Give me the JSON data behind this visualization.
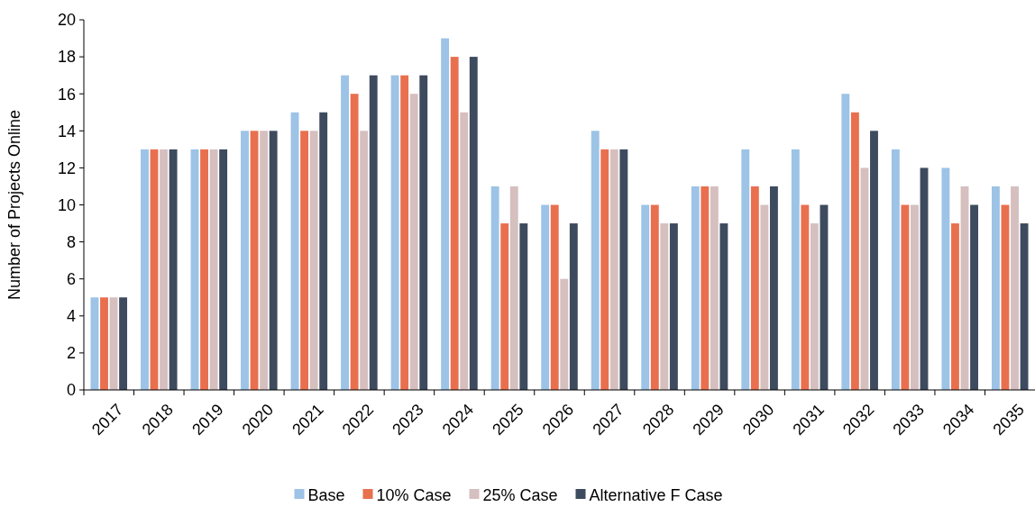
{
  "chart_data": {
    "type": "bar",
    "ylabel": "Number of Projects Online",
    "categories": [
      "2017",
      "2018",
      "2019",
      "2020",
      "2021",
      "2022",
      "2023",
      "2024",
      "2025",
      "2026",
      "2027",
      "2028",
      "2029",
      "2030",
      "2031",
      "2032",
      "2033",
      "2034",
      "2035"
    ],
    "series": [
      {
        "name": "Base",
        "color": "#9dc3e6",
        "values": [
          5,
          13,
          13,
          14,
          15,
          17,
          17,
          19,
          11,
          10,
          14,
          10,
          11,
          13,
          13,
          16,
          13,
          12,
          11
        ]
      },
      {
        "name": "10% Case",
        "color": "#e8704f",
        "values": [
          5,
          13,
          13,
          14,
          14,
          16,
          17,
          18,
          9,
          10,
          13,
          10,
          11,
          11,
          10,
          15,
          10,
          9,
          10
        ]
      },
      {
        "name": "25% Case",
        "color": "#d5bfbf",
        "values": [
          5,
          13,
          13,
          14,
          14,
          14,
          16,
          15,
          11,
          6,
          13,
          9,
          11,
          10,
          9,
          12,
          10,
          11,
          11
        ]
      },
      {
        "name": "Alternative F Case",
        "color": "#3e4b5e",
        "values": [
          5,
          13,
          13,
          14,
          15,
          17,
          17,
          18,
          9,
          9,
          13,
          9,
          9,
          11,
          10,
          14,
          12,
          10,
          9
        ]
      }
    ],
    "ylim": [
      0,
      20
    ],
    "yticks": [
      0,
      2,
      4,
      6,
      8,
      10,
      12,
      14,
      16,
      18,
      20
    ],
    "grid": false,
    "legend": "bottom"
  }
}
